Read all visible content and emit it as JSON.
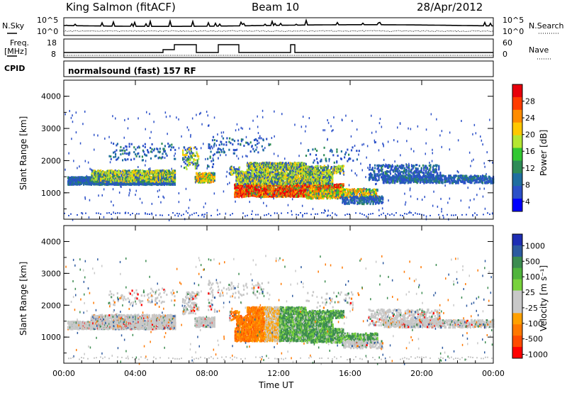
{
  "header": {
    "station": "King Salmon (fitACF)",
    "beam": "Beam 10",
    "date": "28/Apr/2012"
  },
  "top_panels": {
    "nsky_label": "N.Sky",
    "nsky_ticks": [
      "10^5",
      "10^0"
    ],
    "nsearch_label": "N.Search",
    "nsearch_ticks": [
      "10^5",
      "10^0"
    ],
    "freq_label_1": "Freq.",
    "freq_label_2": "[MHz]",
    "freq_ticks": [
      "18",
      "8"
    ],
    "nave_label": "Nave",
    "nave_ticks": [
      "60",
      "0"
    ],
    "cpid_label": "CPID",
    "cpid_text": "normalsound (fast) 157 RF"
  },
  "chart_data": [
    {
      "type": "heatmap",
      "name": "power",
      "ylabel": "Slant Range [km]",
      "colorbar_label": "Power [dB]",
      "yticks": [
        1000,
        2000,
        3000,
        4000
      ],
      "ylim": [
        180,
        4500
      ],
      "colorbar_ticks": [
        "28",
        "24",
        "20",
        "16",
        "12",
        "8",
        "4"
      ],
      "colorbar_colors": [
        "#e8000b",
        "#ff3c00",
        "#ff8c00",
        "#ffc800",
        "#b4e632",
        "#32c832",
        "#2e8b57",
        "#1f6ea0",
        "#2b50c8",
        "#0000ff"
      ]
    },
    {
      "type": "heatmap",
      "name": "velocity",
      "ylabel": "Slant Range [km]",
      "colorbar_label": "Velocity [m s⁻¹]",
      "yticks": [
        1000,
        2000,
        3000,
        4000
      ],
      "ylim": [
        180,
        4500
      ],
      "colorbar_ticks": [
        "1000",
        "500",
        "100",
        "25",
        "-25",
        "-100",
        "-500",
        "-1000"
      ],
      "colorbar_colors": [
        "#1e2eb4",
        "#2d5aa0",
        "#3c8c50",
        "#50b43c",
        "#78d23c",
        "#c8c8c8",
        "#c8c8c8",
        "#ffa000",
        "#ff7800",
        "#ff4b00",
        "#ff0000"
      ]
    }
  ],
  "xaxis": {
    "label": "Time UT",
    "ticks": [
      "00:00",
      "04:00",
      "08:00",
      "12:00",
      "16:00",
      "20:00",
      "00:00"
    ]
  }
}
